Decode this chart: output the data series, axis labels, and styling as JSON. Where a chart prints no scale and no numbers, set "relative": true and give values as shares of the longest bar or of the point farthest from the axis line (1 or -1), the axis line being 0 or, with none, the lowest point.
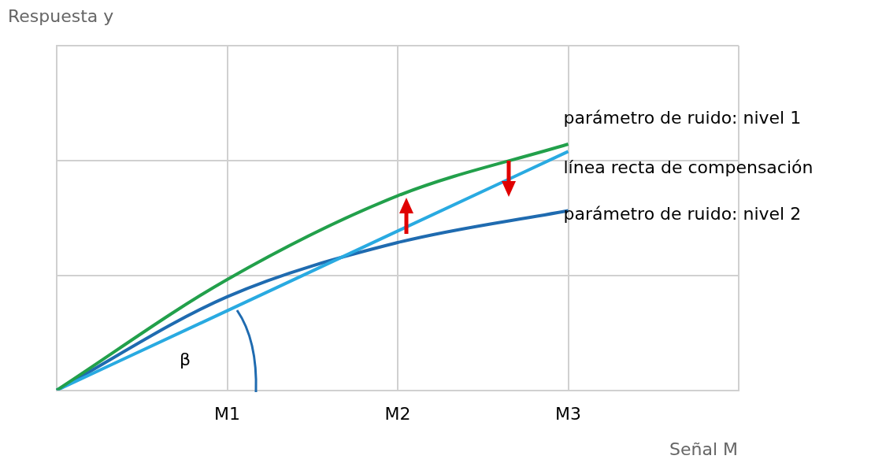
{
  "chart_data": {
    "type": "line",
    "relative": true,
    "xlabel": "Señal M",
    "categories": [
      null,
      "M1",
      "M2",
      "M3",
      null
    ],
    "series": [
      {
        "name": "parámetro de ruido: nivel 1",
        "color": "#22a04b",
        "values": [
          0,
          0.45,
          0.79,
          1,
          null
        ]
      },
      {
        "name": "línea recta de compensación",
        "color": "#29aae1",
        "values": [
          0,
          0.323,
          0.647,
          0.97,
          null
        ]
      },
      {
        "name": "parámetro de ruido: nivel 2",
        "color": "#1f6bb0",
        "values": [
          0,
          0.38,
          0.6,
          0.73,
          null
        ]
      }
    ],
    "annotations": [
      "Respuesta y",
      "β"
    ],
    "grid": true,
    "legend": false,
    "marker": "none",
    "line_style": "solid"
  }
}
